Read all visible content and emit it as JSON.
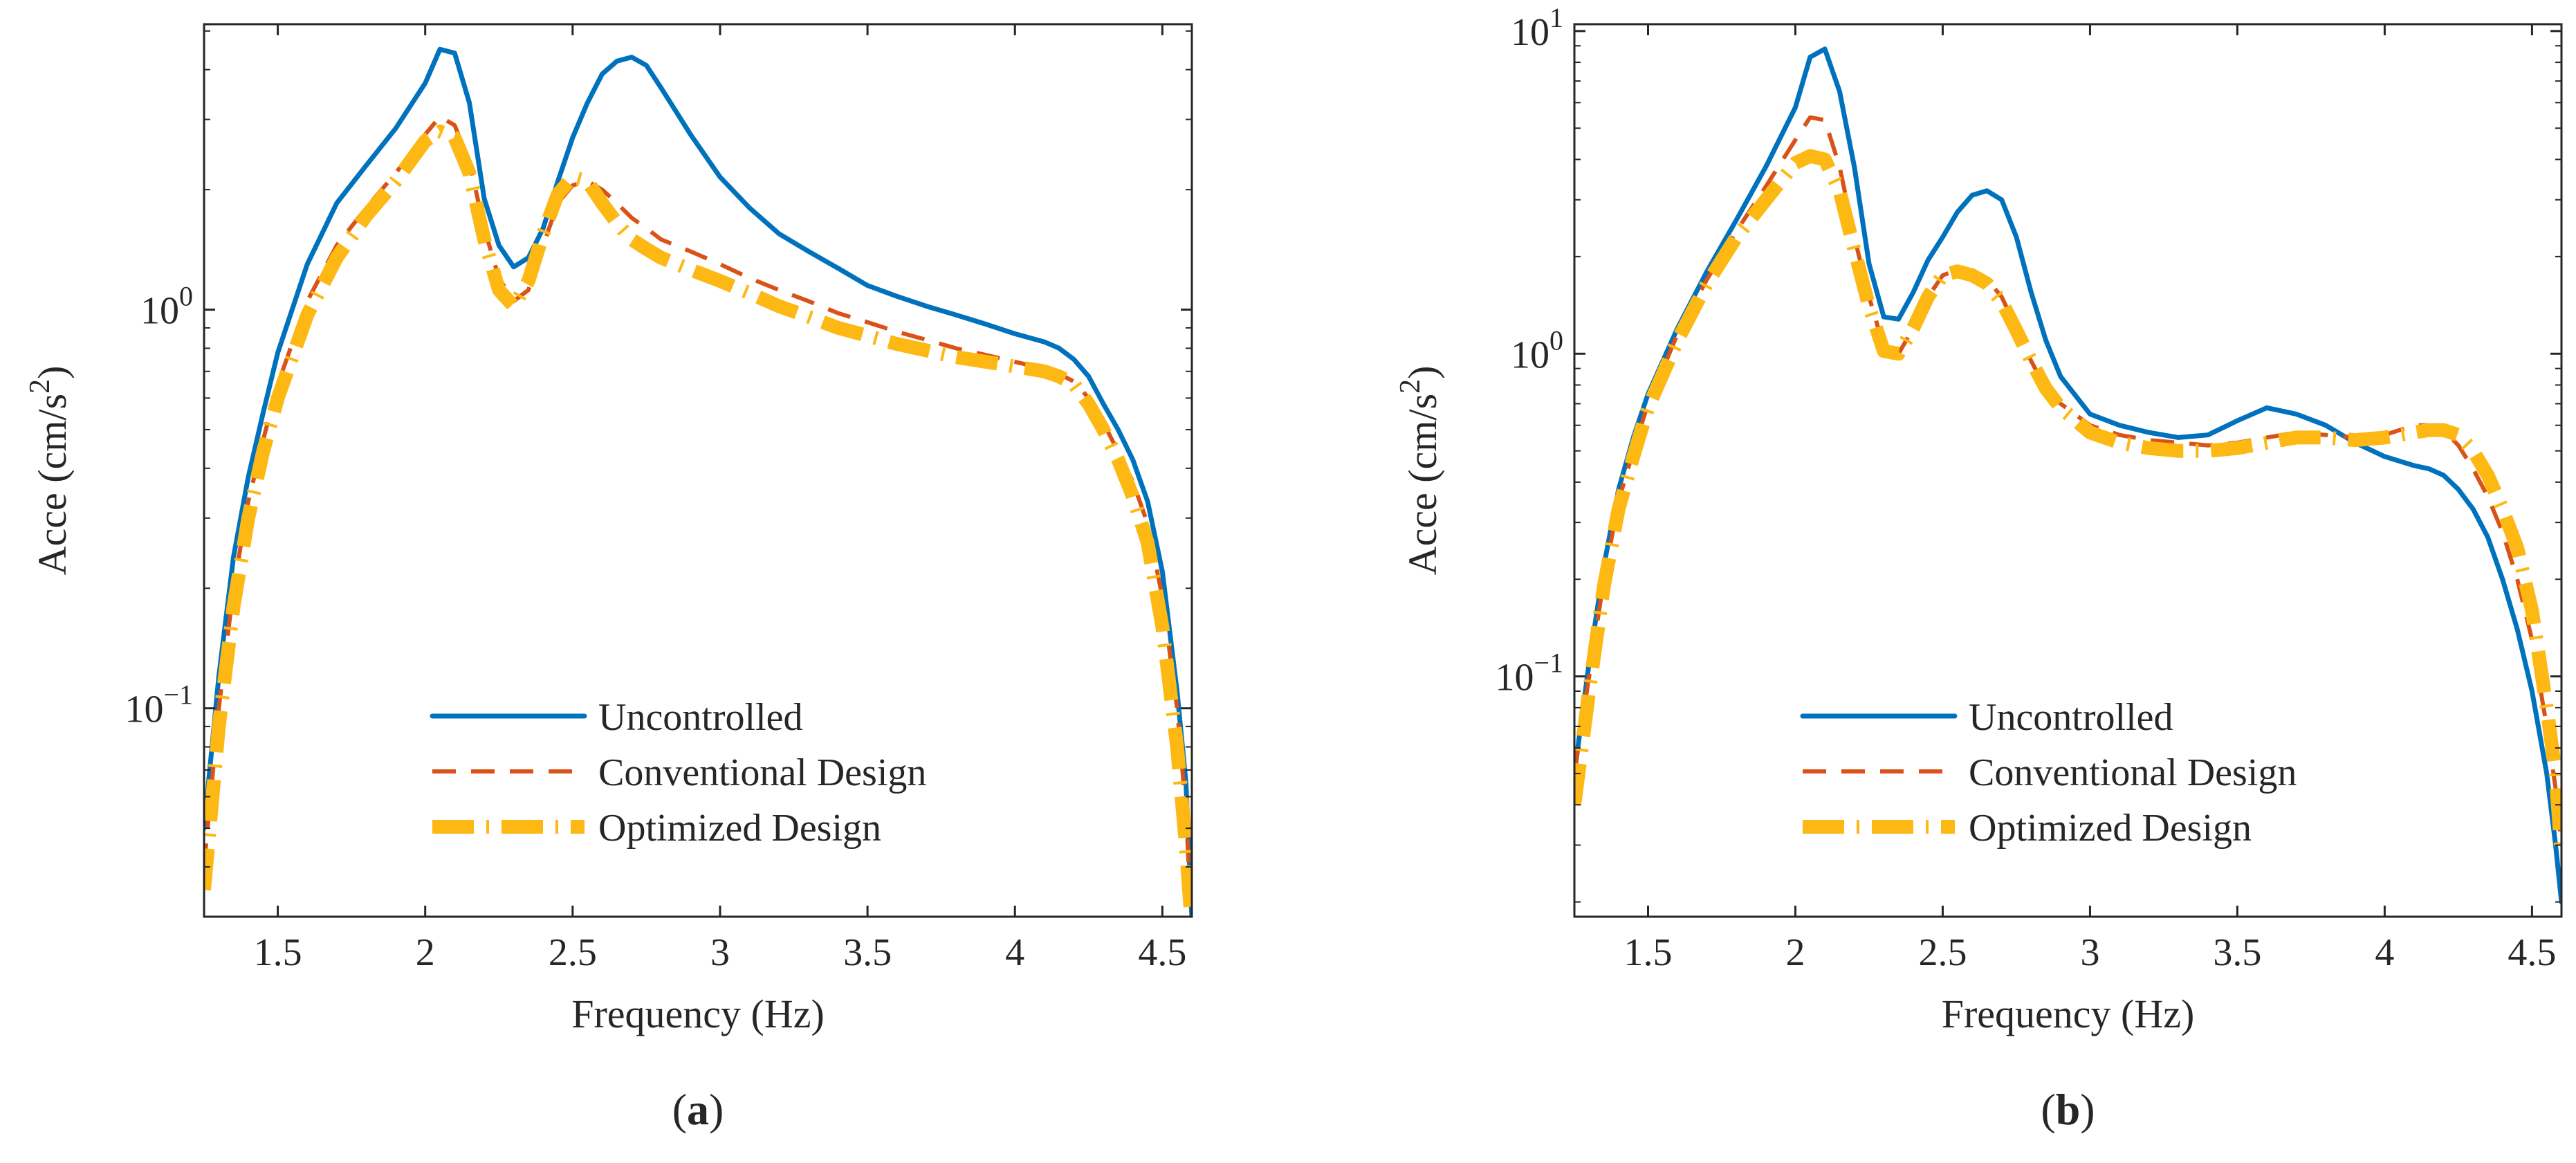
{
  "figure": {
    "panels": [
      {
        "id": "a",
        "caption_letter": "a",
        "xlabel": "Frequency (Hz)",
        "ylabel_main": "Acce (cm/s",
        "ylabel_sup": "2",
        "ylabel_close": ")",
        "xlim": [
          1.25,
          4.6
        ],
        "ylim": [
          0.03,
          5.2
        ],
        "yscale": "log",
        "grid": false,
        "xticks": [
          "1.5",
          "2",
          "2.5",
          "3",
          "3.5",
          "4",
          "4.5"
        ],
        "yticks": [
          {
            "base": "10",
            "exp": "−1",
            "value": 0.1
          },
          {
            "base": "10",
            "exp": "0",
            "value": 1
          }
        ],
        "legend": [
          "Uncontrolled",
          "Conventional Design",
          "Optimized Design"
        ],
        "legend_position": "lower-center"
      },
      {
        "id": "b",
        "caption_letter": "b",
        "xlabel": "Frequency (Hz)",
        "ylabel_main": "Acce (cm/s",
        "ylabel_sup": "2",
        "ylabel_close": ")",
        "xlim": [
          1.25,
          4.6
        ],
        "ylim": [
          0.018,
          10.5
        ],
        "yscale": "log",
        "grid": false,
        "xticks": [
          "1.5",
          "2",
          "2.5",
          "3",
          "3.5",
          "4",
          "4.5"
        ],
        "yticks": [
          {
            "base": "10",
            "exp": "−1",
            "value": 0.1
          },
          {
            "base": "10",
            "exp": "0",
            "value": 1
          },
          {
            "base": "10",
            "exp": "1",
            "value": 10
          }
        ],
        "legend": [
          "Uncontrolled",
          "Conventional Design",
          "Optimized Design"
        ],
        "legend_position": "lower-center"
      }
    ],
    "colors": {
      "uncontrolled": "#0072BD",
      "conventional": "#D95319",
      "optimized": "#FDB813"
    }
  },
  "chart_data": [
    {
      "type": "line",
      "panel": "a",
      "x": [
        1.25,
        1.3,
        1.35,
        1.4,
        1.45,
        1.5,
        1.6,
        1.7,
        1.8,
        1.9,
        2.0,
        2.05,
        2.1,
        2.15,
        2.2,
        2.25,
        2.3,
        2.35,
        2.4,
        2.45,
        2.5,
        2.55,
        2.6,
        2.65,
        2.7,
        2.75,
        2.8,
        2.9,
        3.0,
        3.1,
        3.2,
        3.3,
        3.4,
        3.5,
        3.6,
        3.7,
        3.8,
        3.9,
        4.0,
        4.1,
        4.15,
        4.2,
        4.25,
        4.3,
        4.35,
        4.4,
        4.45,
        4.5,
        4.55,
        4.58,
        4.6
      ],
      "series": [
        {
          "name": "Uncontrolled",
          "values": [
            0.05,
            0.12,
            0.24,
            0.38,
            0.55,
            0.78,
            1.3,
            1.85,
            2.3,
            2.85,
            3.7,
            4.5,
            4.4,
            3.3,
            1.9,
            1.45,
            1.28,
            1.35,
            1.6,
            2.1,
            2.7,
            3.3,
            3.9,
            4.2,
            4.3,
            4.1,
            3.6,
            2.75,
            2.15,
            1.8,
            1.55,
            1.4,
            1.27,
            1.15,
            1.08,
            1.02,
            0.97,
            0.92,
            0.87,
            0.83,
            0.8,
            0.75,
            0.68,
            0.58,
            0.5,
            0.42,
            0.33,
            0.22,
            0.11,
            0.065,
            0.03
          ]
        },
        {
          "name": "Conventional Design",
          "values": [
            0.04,
            0.1,
            0.2,
            0.33,
            0.47,
            0.65,
            1.05,
            1.45,
            1.8,
            2.2,
            2.75,
            3.05,
            2.9,
            2.35,
            1.6,
            1.2,
            1.05,
            1.12,
            1.45,
            1.85,
            2.05,
            2.1,
            2.0,
            1.85,
            1.7,
            1.6,
            1.5,
            1.4,
            1.3,
            1.2,
            1.12,
            1.05,
            0.98,
            0.93,
            0.88,
            0.84,
            0.8,
            0.77,
            0.74,
            0.71,
            0.69,
            0.66,
            0.6,
            0.52,
            0.44,
            0.37,
            0.29,
            0.19,
            0.1,
            0.055,
            0.028
          ]
        },
        {
          "name": "Optimized Design",
          "values": [
            0.035,
            0.09,
            0.18,
            0.3,
            0.44,
            0.6,
            0.97,
            1.35,
            1.72,
            2.1,
            2.65,
            2.8,
            2.7,
            2.2,
            1.5,
            1.12,
            1.02,
            1.18,
            1.55,
            1.95,
            2.15,
            2.1,
            1.85,
            1.65,
            1.5,
            1.42,
            1.35,
            1.26,
            1.18,
            1.1,
            1.02,
            0.96,
            0.9,
            0.86,
            0.82,
            0.79,
            0.76,
            0.74,
            0.72,
            0.7,
            0.68,
            0.65,
            0.58,
            0.5,
            0.42,
            0.34,
            0.26,
            0.16,
            0.08,
            0.045,
            0.028
          ]
        }
      ]
    },
    {
      "type": "line",
      "panel": "b",
      "x": [
        1.25,
        1.3,
        1.35,
        1.4,
        1.45,
        1.5,
        1.6,
        1.7,
        1.8,
        1.9,
        2.0,
        2.05,
        2.1,
        2.15,
        2.2,
        2.25,
        2.3,
        2.35,
        2.4,
        2.45,
        2.5,
        2.55,
        2.6,
        2.65,
        2.7,
        2.75,
        2.8,
        2.85,
        2.9,
        3.0,
        3.1,
        3.2,
        3.3,
        3.4,
        3.5,
        3.6,
        3.7,
        3.8,
        3.9,
        4.0,
        4.1,
        4.15,
        4.2,
        4.25,
        4.3,
        4.35,
        4.4,
        4.45,
        4.5,
        4.55,
        4.58,
        4.6
      ],
      "series": [
        {
          "name": "Uncontrolled",
          "values": [
            0.05,
            0.11,
            0.22,
            0.38,
            0.55,
            0.75,
            1.2,
            1.8,
            2.6,
            3.8,
            5.8,
            8.3,
            8.8,
            6.5,
            3.8,
            1.9,
            1.3,
            1.28,
            1.55,
            1.95,
            2.3,
            2.75,
            3.1,
            3.2,
            3.0,
            2.3,
            1.55,
            1.1,
            0.85,
            0.65,
            0.6,
            0.57,
            0.55,
            0.56,
            0.62,
            0.68,
            0.65,
            0.6,
            0.53,
            0.48,
            0.45,
            0.44,
            0.42,
            0.38,
            0.33,
            0.27,
            0.2,
            0.14,
            0.09,
            0.05,
            0.03,
            0.02
          ]
        },
        {
          "name": "Conventional Design",
          "values": [
            0.05,
            0.1,
            0.2,
            0.35,
            0.5,
            0.7,
            1.15,
            1.7,
            2.4,
            3.3,
            4.6,
            5.4,
            5.3,
            3.8,
            2.3,
            1.5,
            1.05,
            1.0,
            1.2,
            1.5,
            1.75,
            1.82,
            1.8,
            1.7,
            1.5,
            1.2,
            0.95,
            0.78,
            0.7,
            0.6,
            0.56,
            0.54,
            0.53,
            0.52,
            0.53,
            0.55,
            0.57,
            0.56,
            0.55,
            0.56,
            0.6,
            0.6,
            0.58,
            0.52,
            0.44,
            0.36,
            0.28,
            0.2,
            0.13,
            0.07,
            0.045,
            0.03
          ]
        },
        {
          "name": "Optimized Design",
          "values": [
            0.04,
            0.09,
            0.19,
            0.33,
            0.48,
            0.68,
            1.1,
            1.65,
            2.3,
            3.0,
            3.9,
            4.1,
            4.0,
            3.2,
            2.1,
            1.4,
            1.02,
            1.0,
            1.2,
            1.5,
            1.75,
            1.8,
            1.75,
            1.65,
            1.45,
            1.18,
            0.95,
            0.78,
            0.68,
            0.57,
            0.53,
            0.51,
            0.5,
            0.5,
            0.51,
            0.53,
            0.55,
            0.55,
            0.54,
            0.55,
            0.57,
            0.58,
            0.58,
            0.56,
            0.5,
            0.42,
            0.33,
            0.25,
            0.16,
            0.08,
            0.05,
            0.028
          ]
        }
      ]
    }
  ]
}
